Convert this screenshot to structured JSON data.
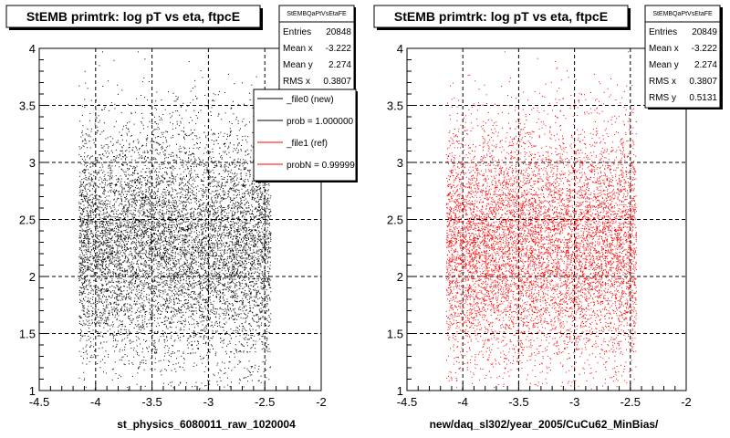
{
  "panels": [
    {
      "title": "StEMB primtrk: log pT vs eta, ftpcE",
      "stats": {
        "name": "StEMBQaPtVsEtaFE",
        "rows": [
          {
            "label": "Entries",
            "value": "20848"
          },
          {
            "label": "Mean x",
            "value": "-3.222"
          },
          {
            "label": "Mean y",
            "value": "2.274"
          },
          {
            "label": "RMS x",
            "value": "0.3807"
          }
        ]
      },
      "xlabel": "st_physics_6080011_raw_1020004",
      "color": "#000000",
      "legend": {
        "entries": [
          {
            "text": "_file0 (new)",
            "color": "#000000"
          },
          {
            "text": "prob = 1.000000",
            "color": "#000000"
          },
          {
            "text": "_file1 (ref)",
            "color": "#ff0000"
          },
          {
            "text": "probN = 0.99999",
            "color": "#ff0000"
          }
        ]
      }
    },
    {
      "title": "StEMB primtrk: log pT vs eta, ftpcE",
      "stats": {
        "name": "StEMBQaPtVsEtaFE",
        "rows": [
          {
            "label": "Entries",
            "value": "20849"
          },
          {
            "label": "Mean x",
            "value": "-3.222"
          },
          {
            "label": "Mean y",
            "value": "2.274"
          },
          {
            "label": "RMS x",
            "value": "0.3807"
          },
          {
            "label": "RMS y",
            "value": "0.5131"
          }
        ]
      },
      "xlabel": "new/daq_sl302/year_2005/CuCu62_MinBias/",
      "color": "#ff0000"
    }
  ],
  "axes": {
    "xticks": [
      "-4.5",
      "-4",
      "-3.5",
      "-3",
      "-2.5",
      "-2"
    ],
    "yticks": [
      "1",
      "1.5",
      "2",
      "2.5",
      "3",
      "3.5",
      "4"
    ]
  },
  "chart_data": [
    {
      "type": "scatter",
      "title": "StEMB primtrk: log pT vs eta, ftpcE",
      "xlabel": "st_physics_6080011_raw_1020004",
      "ylabel": "",
      "xlim": [
        -4.5,
        -2
      ],
      "ylim": [
        1,
        4
      ],
      "grid": true,
      "entries": 20848,
      "mean_x": -3.222,
      "mean_y": 2.274,
      "rms_x": 0.3807,
      "rms_y": 0.5131,
      "x_support": [
        -4.15,
        -2.45
      ],
      "series": [
        {
          "name": "_file0 (new)",
          "color": "#000000"
        }
      ]
    },
    {
      "type": "scatter",
      "title": "StEMB primtrk: log pT vs eta, ftpcE",
      "xlabel": "new/daq_sl302/year_2005/CuCu62_MinBias/",
      "ylabel": "",
      "xlim": [
        -4.5,
        -2
      ],
      "ylim": [
        1,
        4
      ],
      "grid": true,
      "entries": 20849,
      "mean_x": -3.222,
      "mean_y": 2.274,
      "rms_x": 0.3807,
      "rms_y": 0.5131,
      "x_support": [
        -4.15,
        -2.45
      ],
      "series": [
        {
          "name": "_file1 (ref)",
          "color": "#ff0000"
        }
      ]
    }
  ]
}
